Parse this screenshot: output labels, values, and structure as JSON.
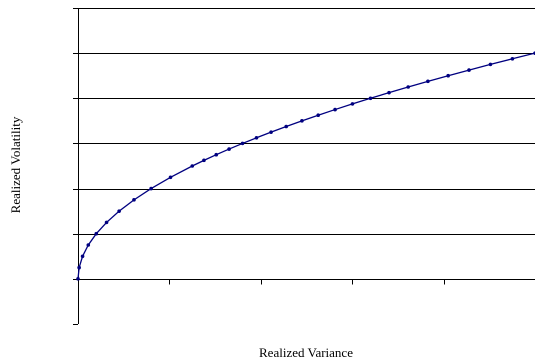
{
  "chart_data": {
    "type": "line",
    "title": "",
    "xlabel": "Realized Variance",
    "ylabel": "Realized Volatility",
    "xlim": [
      0,
      1
    ],
    "ylim": [
      -0.2,
      1.2
    ],
    "y_gridlines": true,
    "x_tick_count": 5,
    "y_tick_count": 7,
    "series": [
      {
        "x": [
          0,
          0.0025,
          0.01,
          0.0225,
          0.04,
          0.0625,
          0.09,
          0.1225,
          0.16,
          0.2025,
          0.25,
          0.2756,
          0.3025,
          0.3306,
          0.36,
          0.3906,
          0.4225,
          0.4556,
          0.49,
          0.5256,
          0.5625,
          0.6006,
          0.64,
          0.6806,
          0.7225,
          0.7656,
          0.81,
          0.8556,
          0.9025,
          0.9506,
          1.0
        ],
        "y": [
          0,
          0.05,
          0.1,
          0.15,
          0.2,
          0.25,
          0.3,
          0.35,
          0.4,
          0.45,
          0.5,
          0.525,
          0.55,
          0.575,
          0.6,
          0.625,
          0.65,
          0.675,
          0.7,
          0.725,
          0.75,
          0.775,
          0.8,
          0.825,
          0.85,
          0.875,
          0.9,
          0.925,
          0.95,
          0.975,
          1.0
        ]
      }
    ],
    "colors": {
      "line": "#000080",
      "marker": "#000080",
      "grid": "#000000",
      "axis": "#000000"
    }
  }
}
